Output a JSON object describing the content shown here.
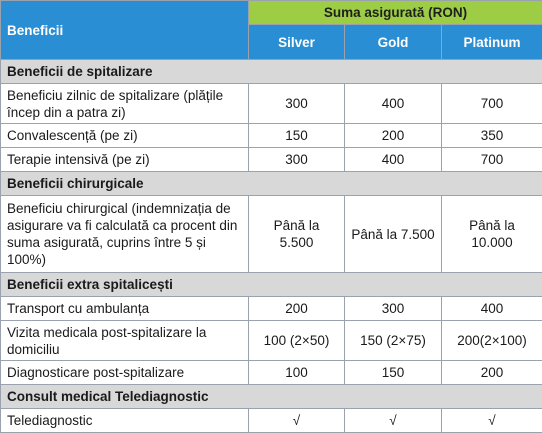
{
  "header": {
    "benefits_label": "Beneficii",
    "sum_insured_label": "Suma asigurată (RON)",
    "tiers": [
      "Silver",
      "Gold",
      "Platinum"
    ]
  },
  "sections": [
    {
      "title": "Beneficii de spitalizare",
      "rows": [
        {
          "label": "Beneficiu zilnic de spitalizare (plățile încep din a patra zi)",
          "values": [
            "300",
            "400",
            "700"
          ]
        },
        {
          "label": "Convalescență (pe zi)",
          "values": [
            "150",
            "200",
            "350"
          ]
        },
        {
          "label": "Terapie intensivă (pe zi)",
          "values": [
            "300",
            "400",
            "700"
          ]
        }
      ]
    },
    {
      "title": "Beneficii chirurgicale",
      "rows": [
        {
          "label": "Beneficiu chirurgical (indemnizația de asigurare va fi calculată ca procent din suma asigurată, cuprins între 5 și 100%)",
          "values": [
            "Până la 5.500",
            "Până la 7.500",
            "Până la 10.000"
          ]
        }
      ]
    },
    {
      "title": "Beneficii extra spitalicești",
      "rows": [
        {
          "label": "Transport cu ambulanța",
          "values": [
            "200",
            "300",
            "400"
          ]
        },
        {
          "label": "Vizita medicala post-spitalizare la domiciliu",
          "values": [
            "100 (2×50)",
            "150 (2×75)",
            "200(2×100)"
          ]
        },
        {
          "label": "Diagnosticare post-spitalizare",
          "values": [
            "100",
            "150",
            "200"
          ]
        }
      ]
    },
    {
      "title": "Consult medical Telediagnostic",
      "rows": [
        {
          "label": "Telediagnostic",
          "values": [
            "√",
            "√",
            "√"
          ]
        }
      ]
    }
  ]
}
